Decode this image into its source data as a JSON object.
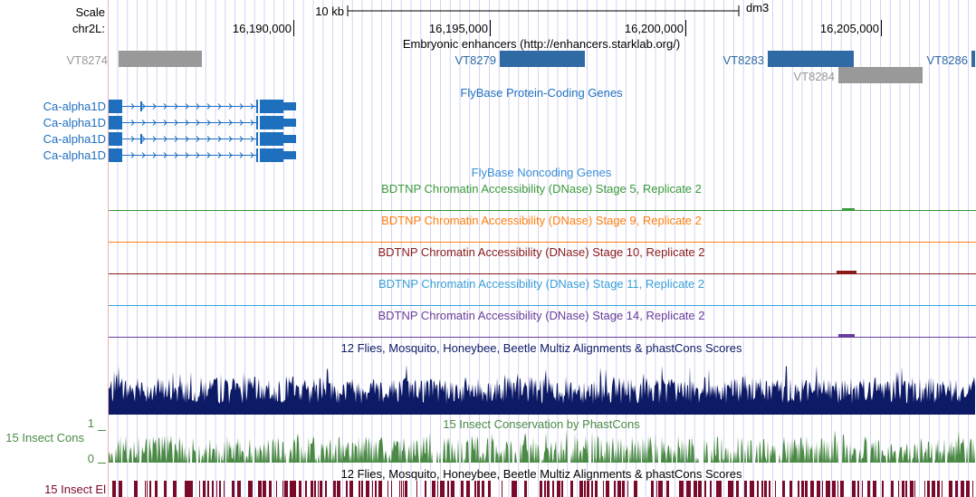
{
  "ruler": {
    "scale_label": "Scale",
    "scale_value": "10 kb",
    "assembly": "dm3",
    "chrom_label": "chr2L:",
    "positions": [
      "16,190,000",
      "16,195,000",
      "16,200,000",
      "16,205,000"
    ]
  },
  "enhancers": {
    "title": "Embryonic enhancers (http://enhancers.starklab.org/)",
    "items": [
      {
        "name": "VT8274",
        "color": "#999999"
      },
      {
        "name": "VT8279",
        "color": "#2f6aa5"
      },
      {
        "name": "VT8283",
        "color": "#2f6aa5"
      },
      {
        "name": "VT8284",
        "color": "#999999"
      },
      {
        "name": "VT8286",
        "color": "#2f6aa5"
      }
    ]
  },
  "protein_genes": {
    "title": "FlyBase Protein-Coding Genes",
    "color": "#1f6fbf",
    "genes": [
      "Ca-alpha1D",
      "Ca-alpha1D",
      "Ca-alpha1D",
      "Ca-alpha1D"
    ]
  },
  "noncoding": {
    "title": "FlyBase Noncoding Genes",
    "color": "#3a8fd8"
  },
  "dnase_tracks": [
    {
      "title": "BDTNP Chromatin Accessibility (DNase) Stage 5, Replicate 2",
      "color": "#3a9a3a"
    },
    {
      "title": "BDTNP Chromatin Accessibility (DNase) Stage 9, Replicate 2",
      "color": "#ff7f0e"
    },
    {
      "title": "BDTNP Chromatin Accessibility (DNase) Stage 10, Replicate 2",
      "color": "#8b1a1a"
    },
    {
      "title": "BDTNP Chromatin Accessibility (DNase) Stage 11, Replicate 2",
      "color": "#3aa0d8"
    },
    {
      "title": "BDTNP Chromatin Accessibility (DNase) Stage 14, Replicate 2",
      "color": "#6a3d9a"
    }
  ],
  "multiz": {
    "title": "12 Flies, Mosquito, Honeybee, Beetle Multiz Alignments & phastCons Scores",
    "color": "#0d1a66"
  },
  "insect_cons": {
    "title": "15 Insect Conservation by PhastCons",
    "side_label": "15 Insect Cons",
    "ymax": "1",
    "ymin": "0",
    "color": "#4a8a45"
  },
  "insect_el": {
    "title": "12 Flies, Mosquito, Honeybee, Beetle Multiz Alignments & phastCons Scores",
    "side_label": "15 Insect El",
    "color": "#7a0a2a"
  },
  "colors": {
    "grid": "#c8c8f0",
    "left_border": "#f2b0b0"
  }
}
